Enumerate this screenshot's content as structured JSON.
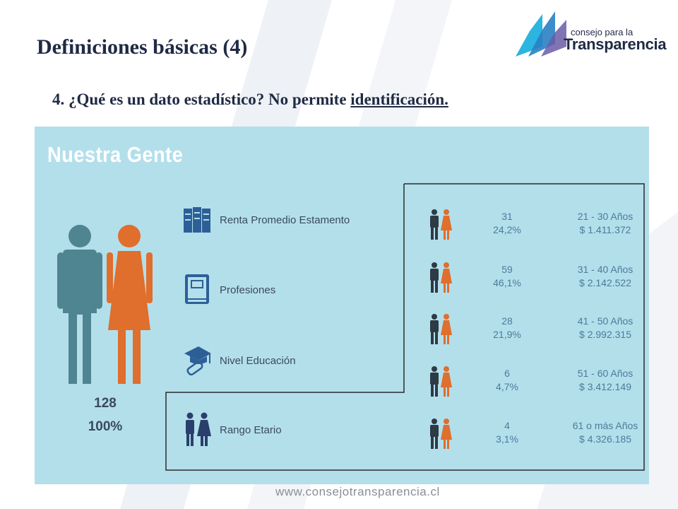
{
  "slide": {
    "title": "Definiciones básicas (4)",
    "question_prefix": "4. ¿Qué es un dato estadístico? No permite ",
    "question_underlined": "identificación."
  },
  "logo": {
    "small_text": "consejo para la",
    "big_text": "Transparencia"
  },
  "infographic": {
    "title": "Nuestra Gente",
    "total": {
      "count": "128",
      "percent": "100%"
    },
    "categories": [
      {
        "label": "Renta Promedio Estamento",
        "icon": "money-stack-icon"
      },
      {
        "label": "Profesiones",
        "icon": "book-icon"
      },
      {
        "label": "Nivel Educación",
        "icon": "graduation-cap-icon"
      },
      {
        "label": "Rango Etario",
        "icon": "people-pair-icon"
      }
    ],
    "rows": [
      {
        "count": "31",
        "percent": "24,2%",
        "range": "21 - 30 Años",
        "income": "$ 1.411.372"
      },
      {
        "count": "59",
        "percent": "46,1%",
        "range": "31 - 40 Años",
        "income": "$ 2.142.522"
      },
      {
        "count": "28",
        "percent": "21,9%",
        "range": "41 - 50 Años",
        "income": "$ 2.992.315"
      },
      {
        "count": "6",
        "percent": "4,7%",
        "range": "51 - 60 Años",
        "income": "$ 3.412.149"
      },
      {
        "count": "4",
        "percent": "3,1%",
        "range": "61 o más Años",
        "income": "$ 4.326.185"
      }
    ],
    "colors": {
      "background": "#b3dfeb",
      "male": "#4f8591",
      "female": "#e06e2c",
      "dark_male": "#2e3a44",
      "icon_blue": "#2d5f97"
    }
  },
  "footer": {
    "url": "www.consejotransparencia.cl"
  }
}
